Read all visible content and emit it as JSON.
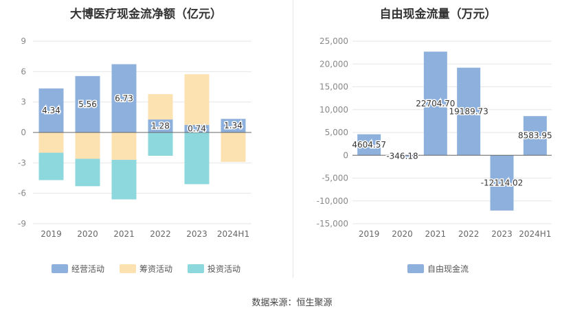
{
  "source": "数据来源：恒生聚源",
  "chart_data": [
    {
      "type": "bar",
      "stacked": true,
      "title": "大博医疗现金流净额（亿元）",
      "categories": [
        "2019",
        "2020",
        "2021",
        "2022",
        "2023",
        "2024H1"
      ],
      "yticks": [
        9,
        6,
        3,
        0,
        -3,
        -6,
        -9
      ],
      "ylim": [
        -9,
        9
      ],
      "legend_position": "bottom-center",
      "series": [
        {
          "name": "经营活动",
          "color": "#8eb0dd",
          "values": [
            4.34,
            5.56,
            6.73,
            1.28,
            0.74,
            1.34
          ],
          "show_labels": true
        },
        {
          "name": "筹资活动",
          "color": "#fde2b1",
          "values": [
            -2.0,
            -2.6,
            -2.7,
            2.5,
            5.0,
            -2.9
          ],
          "show_labels": false
        },
        {
          "name": "投资活动",
          "color": "#8dd8dc",
          "values": [
            -2.7,
            -2.7,
            -3.9,
            -2.3,
            -5.1,
            0
          ],
          "show_labels": false
        }
      ]
    },
    {
      "type": "bar",
      "title": "自由现金流量（万元）",
      "categories": [
        "2019",
        "2020",
        "2021",
        "2022",
        "2023",
        "2024H1"
      ],
      "yticks": [
        "25,000",
        "20,000",
        "15,000",
        "10,000",
        "5,000",
        "0",
        "-5,000",
        "-10,000",
        "-15,000"
      ],
      "ylim": [
        -15000,
        25000
      ],
      "legend_position": "bottom-center",
      "series": [
        {
          "name": "自由现金流",
          "color": "#8eb0dd",
          "values": [
            4604.57,
            -346.18,
            22704.7,
            19189.73,
            -12114.02,
            8583.95
          ],
          "labels": [
            "4604.57",
            "-346.18",
            "22704.70",
            "19189.73",
            "-12114.02",
            "8583.95"
          ]
        }
      ]
    }
  ]
}
